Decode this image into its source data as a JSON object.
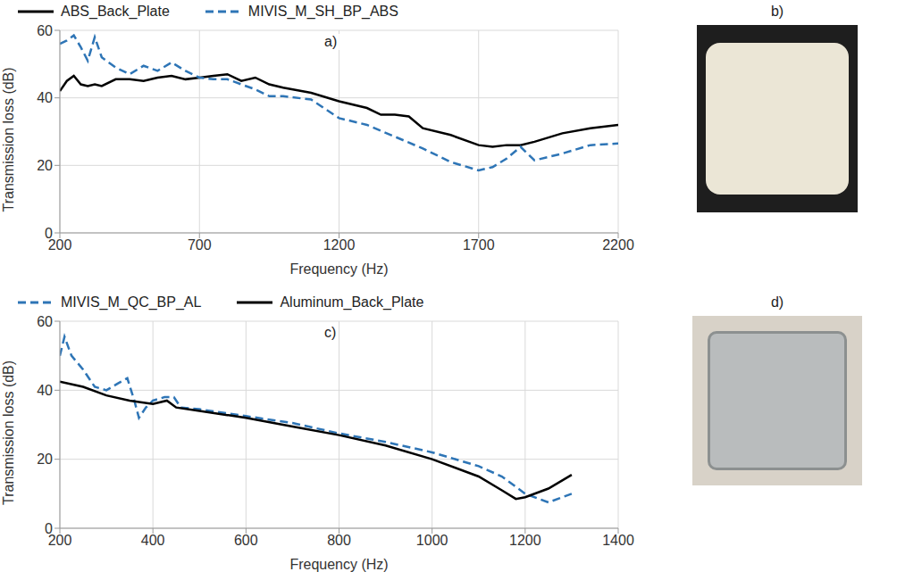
{
  "chart_data": [
    {
      "type": "line",
      "title": "a)",
      "x_label": "Frequency (Hz)",
      "y_label": "Transmission loss (dB)",
      "xlim": [
        200,
        2200
      ],
      "xticks": [
        200,
        700,
        1200,
        1700,
        2200
      ],
      "ylim": [
        0,
        60
      ],
      "yticks": [
        0,
        20,
        40,
        60
      ],
      "grid": true,
      "legend": "top",
      "series": [
        {
          "name": "ABS_Back_Plate",
          "color": "#000000",
          "line_style": "solid",
          "x": [
            200,
            225,
            250,
            275,
            300,
            325,
            350,
            400,
            450,
            500,
            550,
            600,
            650,
            700,
            750,
            800,
            850,
            900,
            950,
            1000,
            1100,
            1200,
            1300,
            1350,
            1400,
            1450,
            1500,
            1600,
            1700,
            1750,
            1800,
            1850,
            1900,
            2000,
            2100,
            2200
          ],
          "values": [
            42,
            45,
            46.5,
            44,
            43.5,
            44,
            43.5,
            45.5,
            45.5,
            45,
            46,
            46.5,
            45.5,
            46,
            46.5,
            47,
            45,
            46,
            44,
            43,
            41.5,
            39,
            37,
            35,
            35,
            34.5,
            31,
            29,
            26,
            25.5,
            26,
            26,
            27,
            29.5,
            31,
            32
          ]
        },
        {
          "name": "MIVIS_M_SH_BP_ABS",
          "color": "#2e75b6",
          "line_style": "dashed",
          "x": [
            200,
            225,
            250,
            275,
            300,
            325,
            350,
            400,
            450,
            500,
            550,
            600,
            650,
            700,
            750,
            800,
            850,
            900,
            950,
            1000,
            1100,
            1200,
            1300,
            1400,
            1500,
            1600,
            1700,
            1750,
            1800,
            1850,
            1900,
            2000,
            2100,
            2200
          ],
          "values": [
            56,
            57,
            58.5,
            55,
            51,
            58,
            52,
            49,
            47,
            49.5,
            48,
            50.5,
            48,
            46,
            45.5,
            45.5,
            44,
            42.5,
            40.5,
            40.5,
            39.5,
            34,
            32,
            28.5,
            25,
            21,
            18.5,
            19.5,
            22,
            25.5,
            21.5,
            23.5,
            26,
            26.5
          ]
        }
      ]
    },
    {
      "type": "line",
      "title": "c)",
      "x_label": "Frequency (Hz)",
      "y_label": "Transmission loss (dB)",
      "xlim": [
        200,
        1400
      ],
      "xticks": [
        200,
        400,
        600,
        800,
        1000,
        1200,
        1400
      ],
      "ylim": [
        0,
        60
      ],
      "yticks": [
        0,
        20,
        40,
        60
      ],
      "grid": true,
      "legend": "top",
      "series": [
        {
          "name": "MIVIS_M_QC_BP_AL",
          "color": "#2e75b6",
          "line_style": "dashed",
          "x": [
            200,
            210,
            225,
            250,
            275,
            300,
            325,
            345,
            360,
            370,
            385,
            400,
            425,
            445,
            460,
            500,
            600,
            700,
            800,
            900,
            1000,
            1100,
            1150,
            1200,
            1250,
            1300
          ],
          "values": [
            50,
            55.5,
            50,
            46,
            41,
            40,
            42,
            43.5,
            37,
            32,
            35,
            37,
            38,
            38,
            35,
            34.5,
            32.5,
            30.5,
            27.5,
            25,
            22,
            18,
            15,
            10,
            7.5,
            10
          ]
        },
        {
          "name": "Aluminum_Back_Plate",
          "color": "#000000",
          "line_style": "solid",
          "x": [
            200,
            250,
            300,
            350,
            400,
            430,
            450,
            500,
            600,
            700,
            800,
            900,
            1000,
            1100,
            1150,
            1180,
            1200,
            1250,
            1300
          ],
          "values": [
            42.5,
            41,
            38.5,
            37,
            36,
            37,
            35,
            34,
            32,
            29.5,
            27,
            24,
            20,
            15,
            11,
            8.5,
            9,
            11.5,
            15.5
          ]
        }
      ]
    }
  ],
  "photos": [
    {
      "label": "b)"
    },
    {
      "label": "d)"
    }
  ]
}
